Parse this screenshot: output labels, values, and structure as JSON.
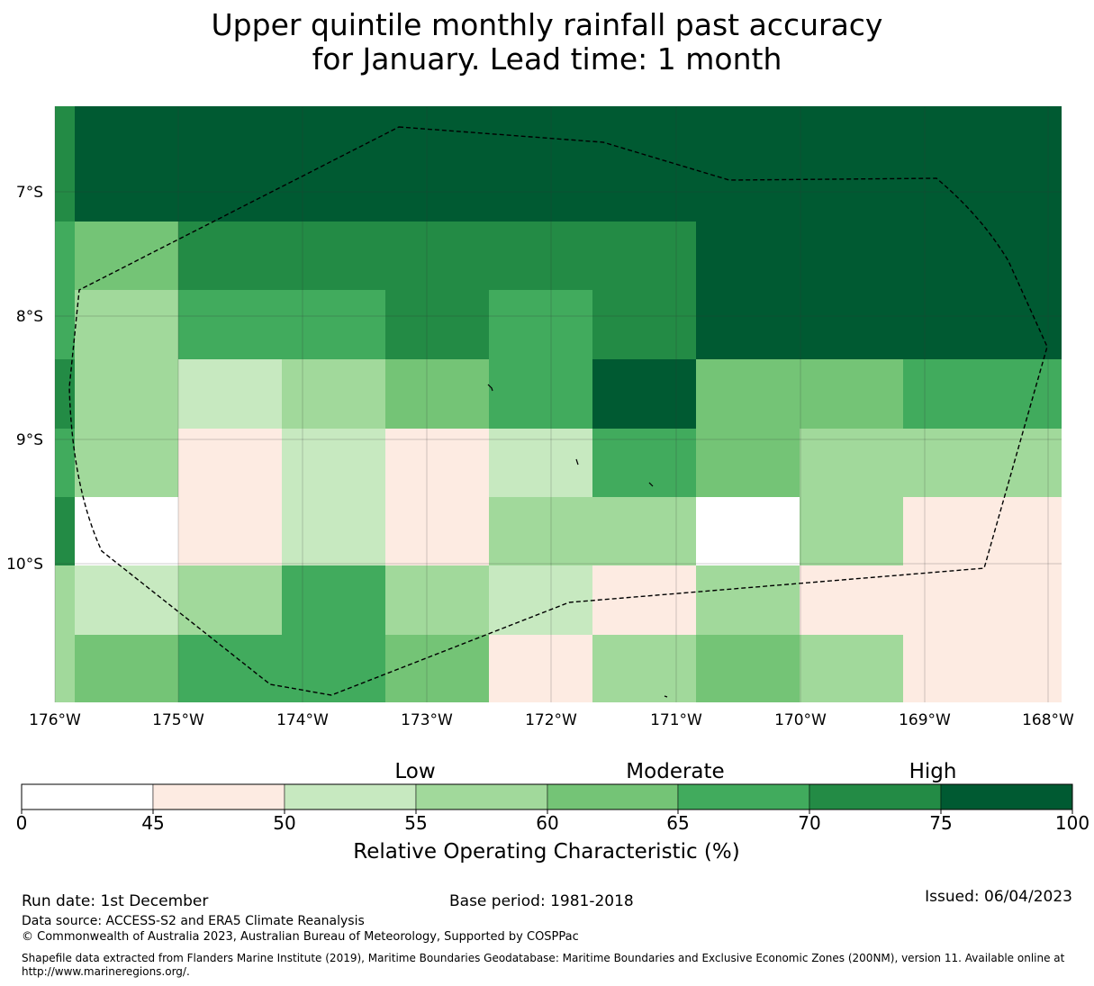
{
  "title": {
    "line1": "Upper quintile monthly rainfall past accuracy",
    "line2": "for January. Lead time: 1 month"
  },
  "map": {
    "lon_labels": [
      "176°W",
      "175°W",
      "174°W",
      "173°W",
      "172°W",
      "171°W",
      "170°W",
      "169°W",
      "168°W"
    ],
    "lat_labels": [
      "7°S",
      "8°S",
      "9°S",
      "10°S"
    ],
    "legend_colors": [
      "#ffffff",
      "#fdebe2",
      "#c7e9c0",
      "#a1d99b",
      "#74c476",
      "#41ab5d",
      "#238b45",
      "#005a32"
    ],
    "grid_rows": [
      [
        6,
        7,
        7,
        7,
        7,
        7,
        7,
        7,
        7,
        7
      ],
      [
        5,
        4,
        6,
        6,
        6,
        6,
        6,
        7,
        7,
        7
      ],
      [
        5,
        3,
        5,
        5,
        6,
        5,
        6,
        7,
        7,
        7
      ],
      [
        6,
        3,
        2,
        3,
        4,
        5,
        7,
        4,
        4,
        5
      ],
      [
        5,
        3,
        1,
        2,
        1,
        2,
        5,
        4,
        3,
        3
      ],
      [
        6,
        0,
        1,
        2,
        1,
        3,
        3,
        0,
        3,
        1
      ],
      [
        3,
        2,
        3,
        5,
        3,
        2,
        1,
        3,
        1,
        1
      ],
      [
        3,
        4,
        5,
        5,
        4,
        1,
        3,
        4,
        3,
        1
      ]
    ]
  },
  "colorbar": {
    "ticks": [
      "0",
      "45",
      "50",
      "55",
      "60",
      "65",
      "70",
      "75",
      "100"
    ],
    "categories": [
      "Low",
      "Moderate",
      "High"
    ],
    "label": "Relative Operating Characteristic (%)"
  },
  "footer": {
    "run_date": "Run date: 1st December",
    "base_period": "Base period: 1981-2018",
    "issued": "Issued: 06/04/2023",
    "data_source": "Data source: ACCESS-S2 and ERA5 Climate Reanalysis",
    "copyright": "© Commonwealth of Australia 2023, Australian Bureau of Meteorology, Supported by COSPPac",
    "shapefile_line1": "Shapefile data extracted from Flanders Marine Institute (2019), Maritime Boundaries Geodatabase: Maritime Boundaries and Exclusive Economic Zones (200NM), version 11. Available online at",
    "shapefile_line2": "http://www.marineregions.org/."
  }
}
